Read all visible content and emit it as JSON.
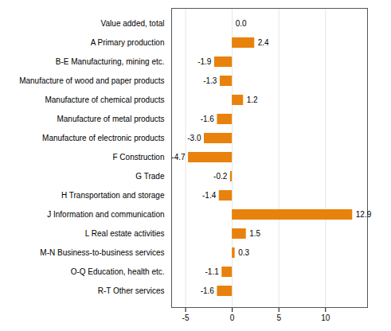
{
  "chart_data": {
    "type": "bar",
    "orientation": "horizontal",
    "categories": [
      "R-T Other services",
      "O-Q Education, health etc.",
      "M-N Business-to-business services",
      "L Real estate activities",
      "J Information and communication",
      "H Transportation and storage",
      "G Trade",
      "F Construction",
      "Manufacture of electronic products",
      "Manufacture of metal products",
      "Manufacture of chemical products",
      "Manufacture of wood and paper products",
      "B-E Manufacturing, mining etc.",
      "A Primary production",
      "Value added, total"
    ],
    "values": [
      -1.6,
      -1.1,
      0.3,
      1.5,
      12.9,
      -1.4,
      -0.2,
      -4.7,
      -3.0,
      -1.6,
      1.2,
      -1.3,
      -1.9,
      2.4,
      0.0
    ],
    "value_labels": [
      "-1.6",
      "-1.1",
      "0.3",
      "1.5",
      "12.9",
      "-1.4",
      "-0.2",
      "-4.7",
      "-3.0",
      "-1.6",
      "1.2",
      "-1.3",
      "-1.9",
      "2.4",
      "0.0"
    ],
    "color": "#E8820C",
    "xlim": [
      -6.5,
      14.5
    ],
    "xticks": [
      -5,
      0,
      5,
      10
    ],
    "grid": true,
    "data_labels": true
  }
}
